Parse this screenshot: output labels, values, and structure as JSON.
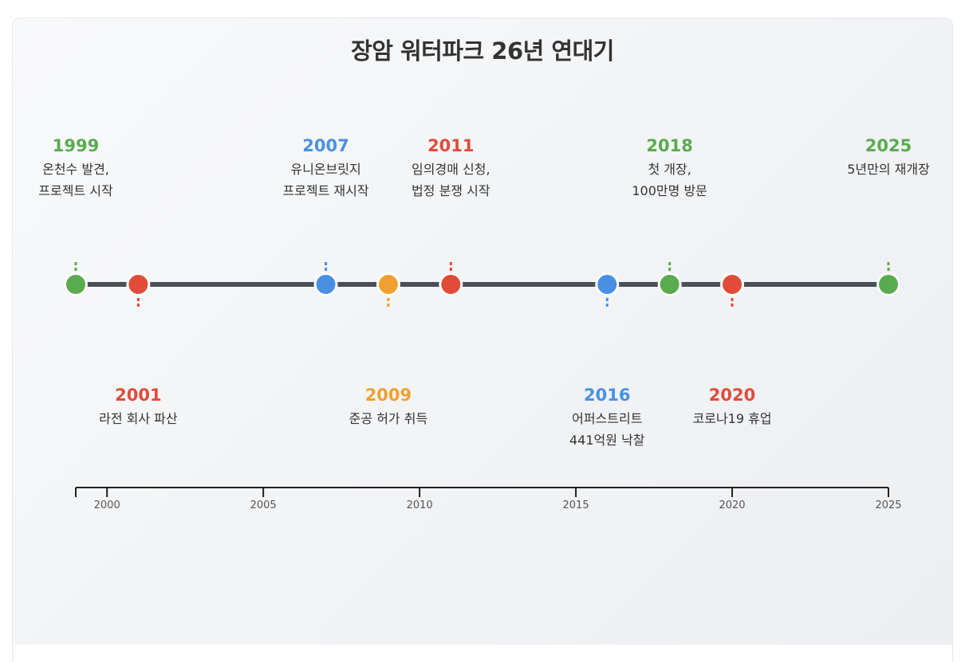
{
  "title": "장암 워터파크 26년 연대기",
  "colors": {
    "green": "#5aab4f",
    "red": "#e04b3a",
    "blue": "#4a90e2",
    "orange": "#f0a030",
    "line": "#4a4f57"
  },
  "events": [
    {
      "year": "1999",
      "color": "green",
      "side": "above",
      "lines": [
        "온천수 발견,",
        "프로젝트 시작"
      ]
    },
    {
      "year": "2001",
      "color": "red",
      "side": "below",
      "lines": [
        "라전 회사 파산"
      ]
    },
    {
      "year": "2007",
      "color": "blue",
      "side": "above",
      "lines": [
        "유니온브릿지",
        "프로젝트 재시작"
      ]
    },
    {
      "year": "2009",
      "color": "orange",
      "side": "below",
      "lines": [
        "준공 허가 취득"
      ]
    },
    {
      "year": "2011",
      "color": "red",
      "side": "above",
      "lines": [
        "임의경매 신청,",
        "법정 분쟁 시작"
      ]
    },
    {
      "year": "2016",
      "color": "blue",
      "side": "below",
      "lines": [
        "어퍼스트리트",
        "441억원 낙찰"
      ]
    },
    {
      "year": "2018",
      "color": "green",
      "side": "above",
      "lines": [
        "첫 개장,",
        "100만명 방문"
      ]
    },
    {
      "year": "2020",
      "color": "red",
      "side": "below",
      "lines": [
        "코로나19 휴업"
      ]
    },
    {
      "year": "2025",
      "color": "green",
      "side": "above",
      "lines": [
        "5년만의 재개장"
      ]
    }
  ],
  "axis": {
    "start": 1999,
    "end": 2025,
    "ticks": [
      "2000",
      "2005",
      "2010",
      "2015",
      "2020",
      "2025"
    ]
  }
}
